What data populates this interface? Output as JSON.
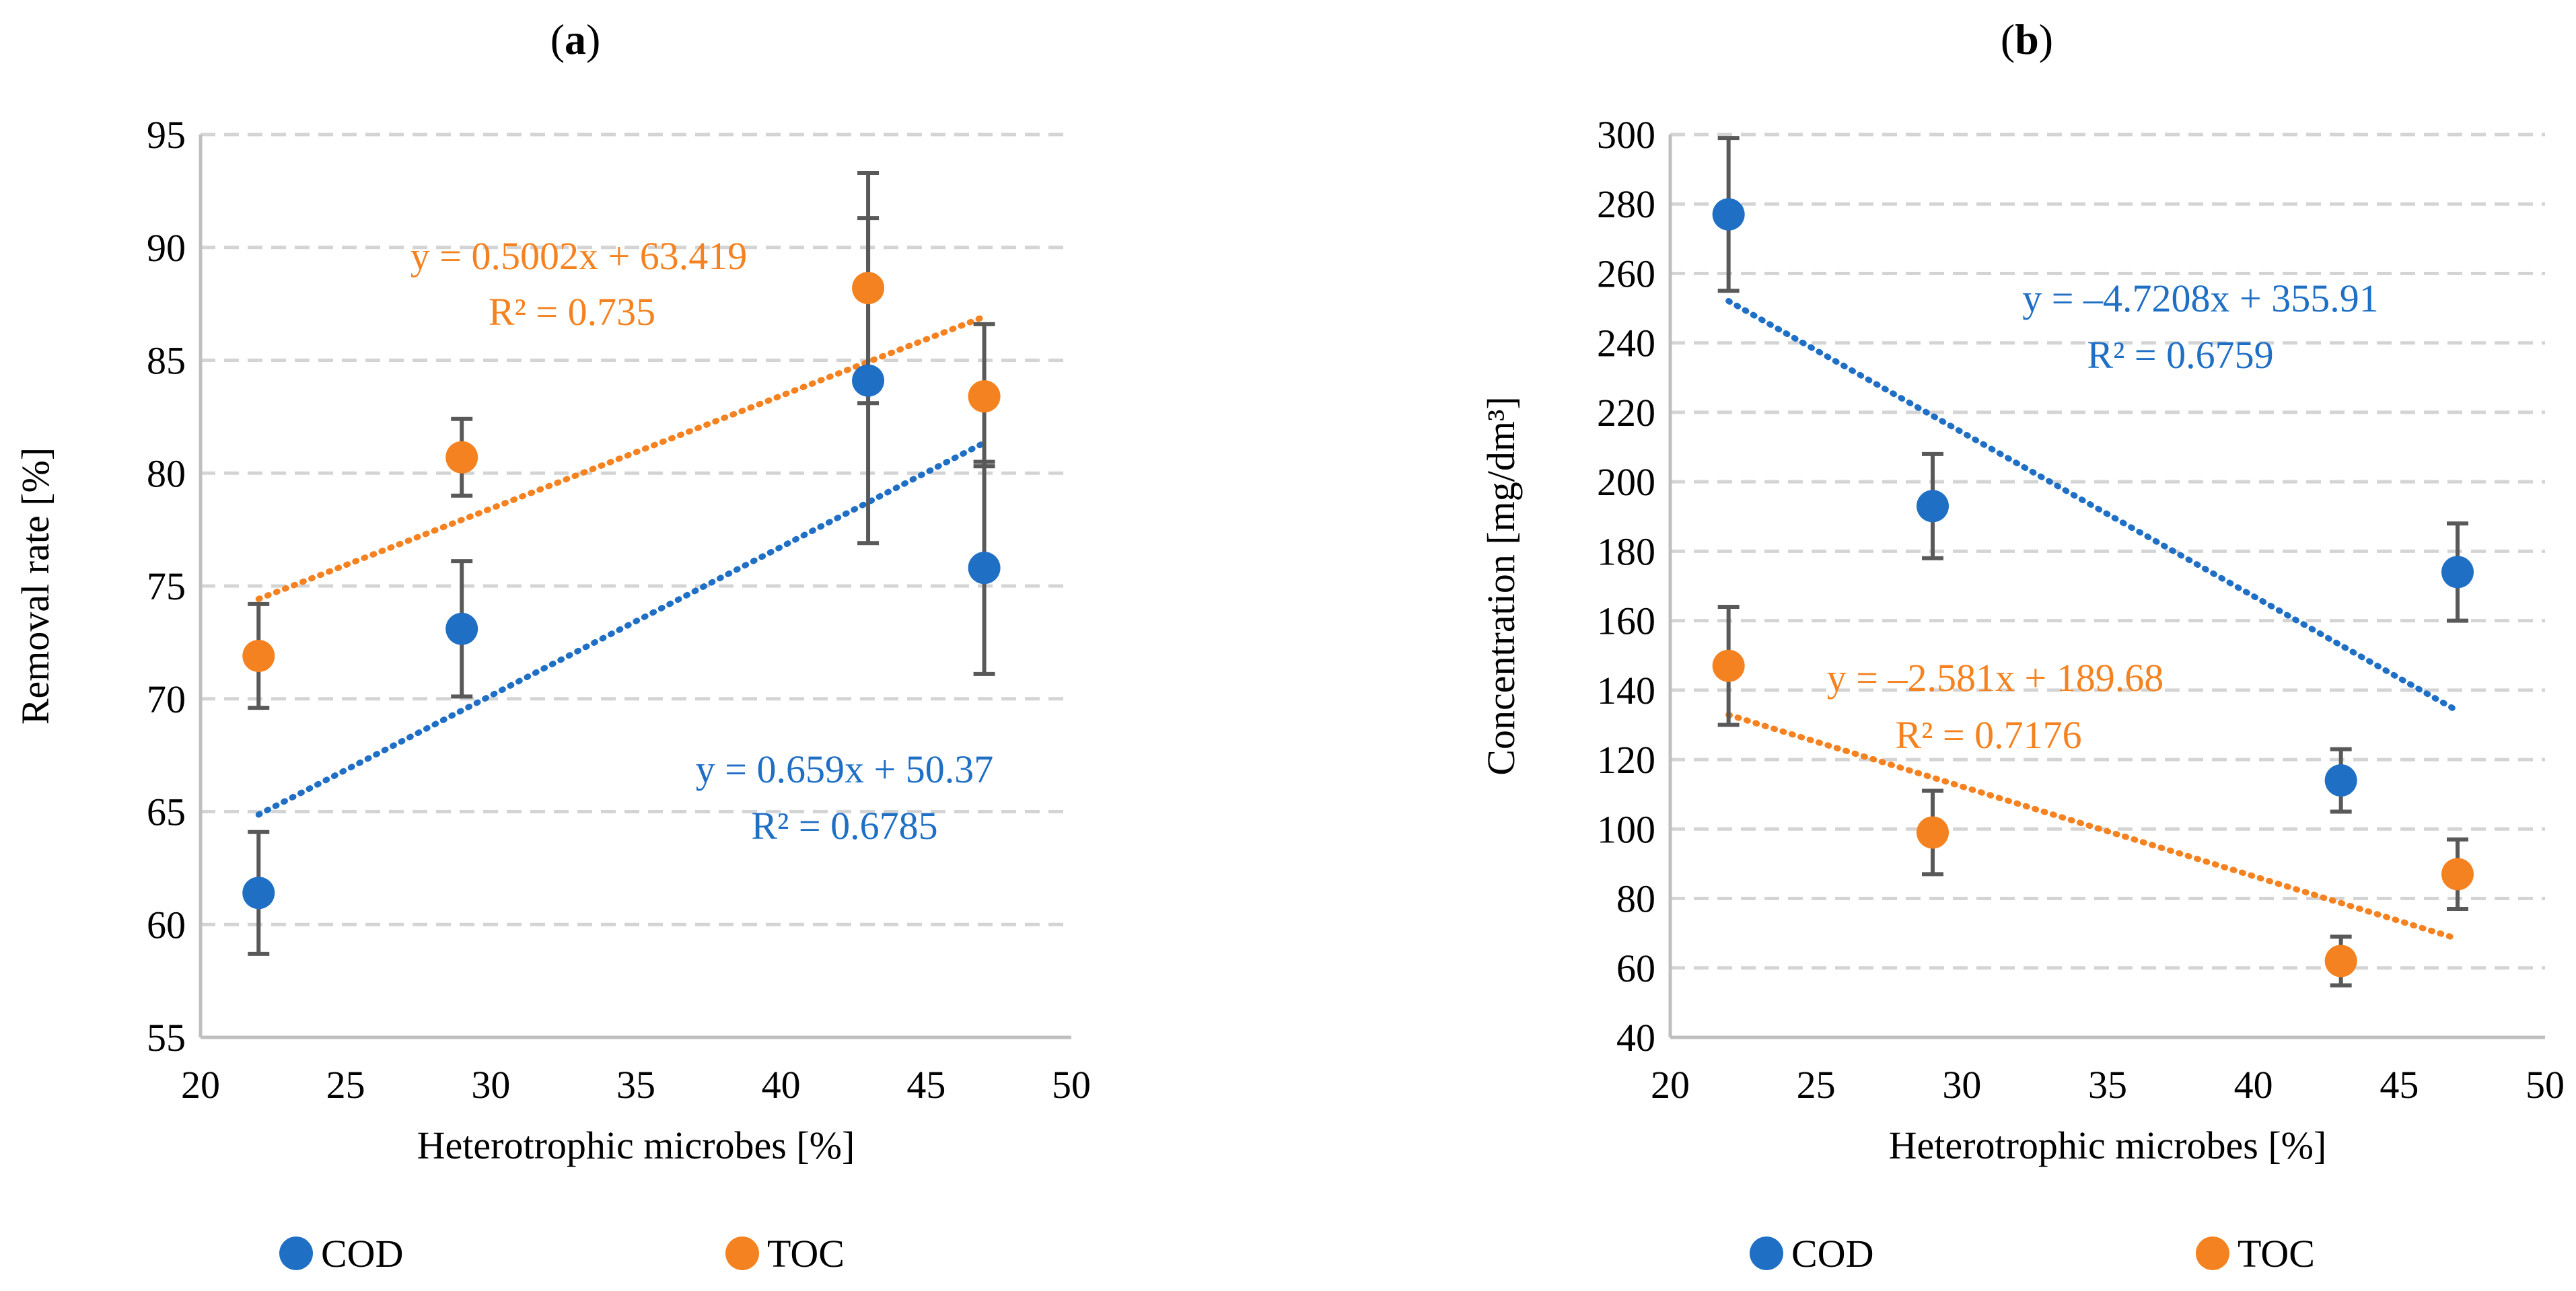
{
  "chart_data": [
    {
      "panel_label": "(a)",
      "panel_letter": "a",
      "type": "scatter",
      "xlabel": "Heterotrophic microbes [%]",
      "ylabel": "Removal rate [%]",
      "xlim": [
        20,
        50
      ],
      "ylim": [
        55,
        95
      ],
      "xticks": [
        20,
        25,
        30,
        35,
        40,
        45,
        50
      ],
      "yticks": [
        55,
        60,
        65,
        70,
        75,
        80,
        85,
        90,
        95
      ],
      "grid": "horizontal-dashed",
      "legend_position": "bottom",
      "series": [
        {
          "name": "COD",
          "color": "#1F6FC5",
          "x": [
            22,
            29,
            43,
            47
          ],
          "y": [
            61.4,
            73.1,
            84.1,
            75.8
          ],
          "err_low": [
            58.7,
            70.1,
            76.9,
            71.1
          ],
          "err_high": [
            64.1,
            76.1,
            91.3,
            80.5
          ],
          "trendline": {
            "slope": 0.659,
            "intercept": 50.37,
            "x_range": [
              22,
              47
            ]
          },
          "equation": "y = 0.659x + 50.37",
          "r2": "R² = 0.6785"
        },
        {
          "name": "TOC",
          "color": "#F58220",
          "x": [
            22,
            29,
            43,
            47
          ],
          "y": [
            71.9,
            80.7,
            88.2,
            83.4
          ],
          "err_low": [
            69.6,
            79.0,
            83.1,
            80.3
          ],
          "err_high": [
            74.2,
            82.4,
            93.3,
            86.6
          ],
          "trendline": {
            "slope": 0.5002,
            "intercept": 63.419,
            "x_range": [
              22,
              47
            ]
          },
          "equation": "y = 0.5002x + 63.419",
          "r2": "R² = 0.735"
        }
      ]
    },
    {
      "panel_label": "(b)",
      "panel_letter": "b",
      "type": "scatter",
      "xlabel": "Heterotrophic microbes [%]",
      "ylabel": "Concentration [mg/dm³]",
      "xlim": [
        20,
        50
      ],
      "ylim": [
        40,
        300
      ],
      "xticks": [
        20,
        25,
        30,
        35,
        40,
        45,
        50
      ],
      "yticks": [
        40,
        60,
        80,
        100,
        120,
        140,
        160,
        180,
        200,
        220,
        240,
        260,
        280,
        300
      ],
      "grid": "horizontal-dashed",
      "legend_position": "bottom",
      "series": [
        {
          "name": "COD",
          "color": "#1F6FC5",
          "x": [
            22,
            29,
            43,
            47
          ],
          "y": [
            277,
            193,
            114,
            174
          ],
          "err_low": [
            255,
            178,
            105,
            160
          ],
          "err_high": [
            299,
            208,
            123,
            188
          ],
          "trendline": {
            "slope": -4.7208,
            "intercept": 355.91,
            "x_range": [
              22,
              47
            ]
          },
          "equation": "y = –4.7208x + 355.91",
          "r2": "R² = 0.6759"
        },
        {
          "name": "TOC",
          "color": "#F58220",
          "x": [
            22,
            29,
            43,
            47
          ],
          "y": [
            147,
            99,
            62,
            87
          ],
          "err_low": [
            130,
            87,
            55,
            77
          ],
          "err_high": [
            164,
            111,
            69,
            97
          ],
          "trendline": {
            "slope": -2.581,
            "intercept": 189.68,
            "x_range": [
              22,
              47
            ]
          },
          "equation": "y = –2.581x + 189.68",
          "r2": "R² = 0.7176"
        }
      ]
    }
  ]
}
